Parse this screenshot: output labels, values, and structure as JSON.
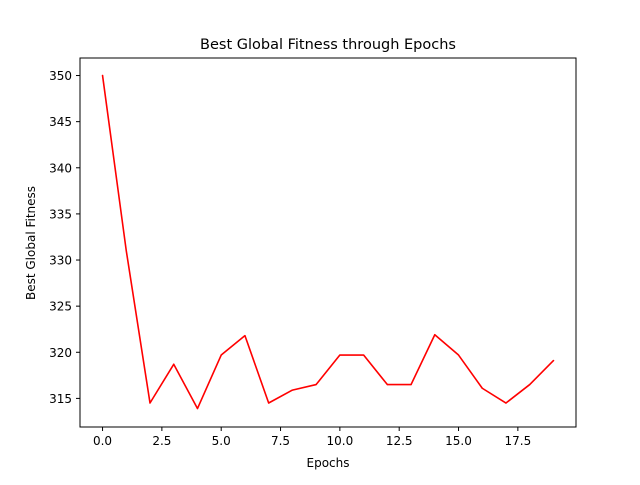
{
  "chart_data": {
    "type": "line",
    "title": "Best Global Fitness through Epochs",
    "xlabel": "Epochs",
    "ylabel": "Best Global Fitness",
    "x": [
      0,
      1,
      2,
      3,
      4,
      5,
      6,
      7,
      8,
      9,
      10,
      11,
      12,
      13,
      14,
      15,
      16,
      17,
      18,
      19
    ],
    "series": [
      {
        "values": [
          350.0,
          331.0,
          314.5,
          318.7,
          313.9,
          319.7,
          321.8,
          314.5,
          315.9,
          316.5,
          319.7,
          319.7,
          316.5,
          316.5,
          321.9,
          319.7,
          316.1,
          314.5,
          316.5,
          319.1
        ],
        "color": "#ff0000"
      }
    ],
    "xlim": [
      -0.95,
      19.95
    ],
    "ylim": [
      311.9,
      351.9
    ],
    "xticks": [
      0,
      2.5,
      5,
      7.5,
      10,
      12.5,
      15,
      17.5
    ],
    "xtick_labels": [
      "0.0",
      "2.5",
      "5.0",
      "7.5",
      "10.0",
      "12.5",
      "15.0",
      "17.5"
    ],
    "yticks": [
      315,
      320,
      325,
      330,
      335,
      340,
      345,
      350
    ],
    "ytick_labels": [
      "315",
      "320",
      "325",
      "330",
      "335",
      "340",
      "345",
      "350"
    ],
    "grid": false,
    "legend": "none"
  }
}
